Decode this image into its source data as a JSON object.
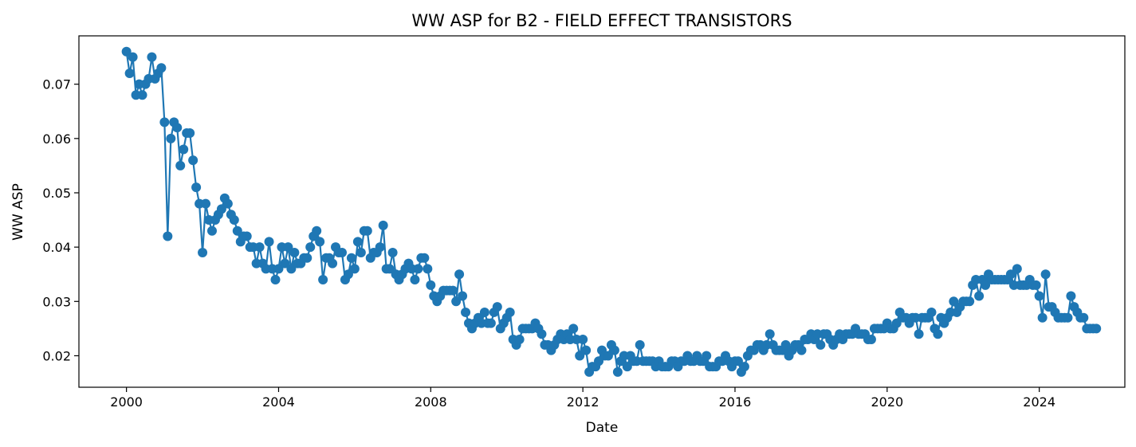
{
  "chart_data": {
    "type": "line",
    "title": "WW ASP for B2 - FIELD EFFECT TRANSISTORS",
    "xlabel": "Date",
    "ylabel": "WW ASP",
    "xlim": [
      1998.75,
      2026.25
    ],
    "ylim": [
      0.0142,
      0.0789
    ],
    "x_ticks": [
      2000,
      2004,
      2008,
      2012,
      2016,
      2020,
      2024
    ],
    "x_tick_labels": [
      "2000",
      "2004",
      "2008",
      "2012",
      "2016",
      "2020",
      "2024"
    ],
    "y_ticks": [
      0.02,
      0.03,
      0.04,
      0.05,
      0.06,
      0.07
    ],
    "y_tick_labels": [
      "0.02",
      "0.03",
      "0.04",
      "0.05",
      "0.06",
      "0.07"
    ],
    "grid": false,
    "color": "#1f77b4",
    "marker": "circle",
    "series": [
      {
        "name": "WW ASP",
        "x_start": 2000.0,
        "x_step_months": 1,
        "values": [
          0.076,
          0.072,
          0.075,
          0.068,
          0.07,
          0.068,
          0.07,
          0.071,
          0.075,
          0.071,
          0.072,
          0.073,
          0.063,
          0.042,
          0.06,
          0.063,
          0.062,
          0.055,
          0.058,
          0.061,
          0.061,
          0.056,
          0.051,
          0.048,
          0.039,
          0.048,
          0.045,
          0.043,
          0.045,
          0.046,
          0.047,
          0.049,
          0.048,
          0.046,
          0.045,
          0.043,
          0.041,
          0.042,
          0.042,
          0.04,
          0.04,
          0.037,
          0.04,
          0.037,
          0.036,
          0.041,
          0.036,
          0.034,
          0.036,
          0.04,
          0.037,
          0.04,
          0.036,
          0.039,
          0.037,
          0.037,
          0.038,
          0.038,
          0.04,
          0.042,
          0.043,
          0.041,
          0.034,
          0.038,
          0.038,
          0.037,
          0.04,
          0.039,
          0.039,
          0.034,
          0.035,
          0.038,
          0.036,
          0.041,
          0.039,
          0.043,
          0.043,
          0.038,
          0.039,
          0.039,
          0.04,
          0.044,
          0.036,
          0.036,
          0.039,
          0.035,
          0.034,
          0.035,
          0.036,
          0.037,
          0.036,
          0.034,
          0.036,
          0.038,
          0.038,
          0.036,
          0.033,
          0.031,
          0.03,
          0.031,
          0.032,
          0.032,
          0.032,
          0.032,
          0.03,
          0.035,
          0.031,
          0.028,
          0.026,
          0.025,
          0.026,
          0.027,
          0.026,
          0.028,
          0.026,
          0.026,
          0.028,
          0.029,
          0.025,
          0.026,
          0.027,
          0.028,
          0.023,
          0.022,
          0.023,
          0.025,
          0.025,
          0.025,
          0.025,
          0.026,
          0.025,
          0.024,
          0.022,
          0.022,
          0.021,
          0.022,
          0.023,
          0.024,
          0.023,
          0.024,
          0.023,
          0.025,
          0.023,
          0.02,
          0.023,
          0.021,
          0.017,
          0.018,
          0.018,
          0.019,
          0.021,
          0.02,
          0.02,
          0.022,
          0.021,
          0.017,
          0.019,
          0.02,
          0.018,
          0.02,
          0.019,
          0.019,
          0.022,
          0.019,
          0.019,
          0.019,
          0.019,
          0.018,
          0.019,
          0.018,
          0.018,
          0.018,
          0.019,
          0.019,
          0.018,
          0.019,
          0.019,
          0.02,
          0.019,
          0.019,
          0.02,
          0.019,
          0.019,
          0.02,
          0.018,
          0.018,
          0.018,
          0.019,
          0.019,
          0.02,
          0.019,
          0.018,
          0.019,
          0.019,
          0.017,
          0.018,
          0.02,
          0.021,
          0.021,
          0.022,
          0.022,
          0.021,
          0.022,
          0.024,
          0.022,
          0.021,
          0.021,
          0.021,
          0.022,
          0.02,
          0.021,
          0.022,
          0.022,
          0.021,
          0.023,
          0.023,
          0.024,
          0.023,
          0.024,
          0.022,
          0.024,
          0.024,
          0.023,
          0.022,
          0.023,
          0.024,
          0.023,
          0.024,
          0.024,
          0.024,
          0.025,
          0.024,
          0.024,
          0.024,
          0.023,
          0.023,
          0.025,
          0.025,
          0.025,
          0.025,
          0.026,
          0.025,
          0.025,
          0.026,
          0.028,
          0.027,
          0.027,
          0.026,
          0.027,
          0.027,
          0.024,
          0.027,
          0.027,
          0.027,
          0.028,
          0.025,
          0.024,
          0.027,
          0.026,
          0.027,
          0.028,
          0.03,
          0.028,
          0.029,
          0.03,
          0.03,
          0.03,
          0.033,
          0.034,
          0.031,
          0.034,
          0.033,
          0.035,
          0.034,
          0.034,
          0.034,
          0.034,
          0.034,
          0.034,
          0.035,
          0.033,
          0.036,
          0.033,
          0.033,
          0.033,
          0.034,
          0.033,
          0.033,
          0.031,
          0.027,
          0.035,
          0.029,
          0.029,
          0.028,
          0.027,
          0.027,
          0.027,
          0.027,
          0.031,
          0.029,
          0.028,
          0.027,
          0.027,
          0.025,
          0.025,
          0.025,
          0.025
        ]
      }
    ]
  }
}
